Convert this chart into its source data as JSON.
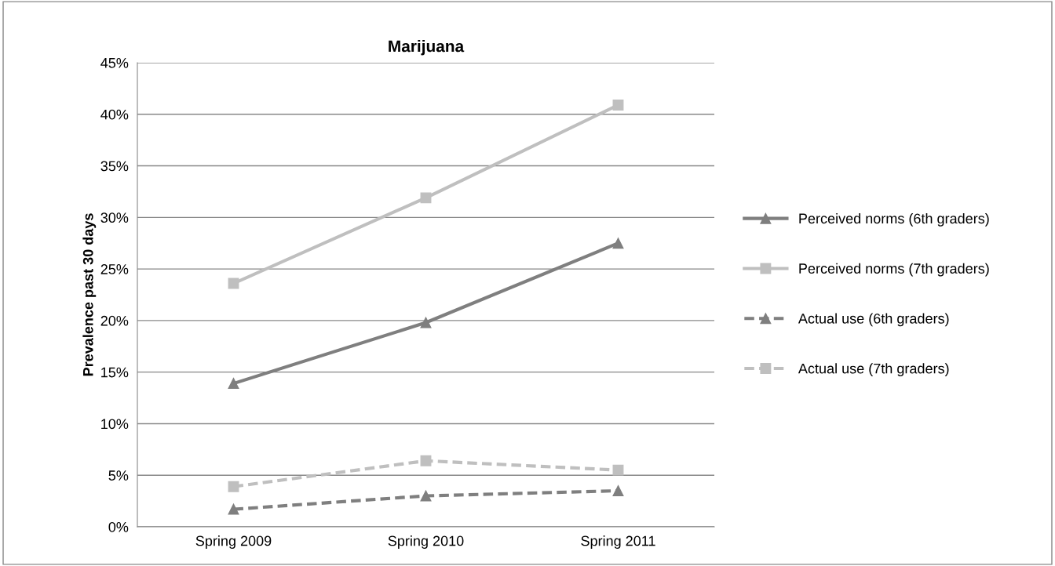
{
  "chart_data": {
    "type": "line",
    "title": "Marijuana",
    "ylabel": "Prevalence past 30 days",
    "categories": [
      "Spring 2009",
      "Spring 2010",
      "Spring 2011"
    ],
    "series": [
      {
        "name": "Perceived norms (6th graders)",
        "color": "#7f7f7f",
        "marker": "triangle",
        "line_style": "solid",
        "values": [
          13.9,
          19.8,
          27.5
        ]
      },
      {
        "name": "Perceived norms (7th graders)",
        "color": "#bfbfbf",
        "marker": "square",
        "line_style": "solid",
        "values": [
          23.6,
          31.9,
          40.9
        ]
      },
      {
        "name": "Actual use (6th graders)",
        "color": "#7f7f7f",
        "marker": "triangle",
        "line_style": "dashed",
        "values": [
          1.7,
          3.0,
          3.5
        ]
      },
      {
        "name": "Actual use (7th graders)",
        "color": "#bfbfbf",
        "marker": "square",
        "line_style": "dashed",
        "values": [
          3.9,
          6.4,
          5.5
        ]
      }
    ],
    "ylim": [
      0,
      45
    ],
    "yticks": [
      {
        "value": 0,
        "label": "0%"
      },
      {
        "value": 5,
        "label": "5%"
      },
      {
        "value": 10,
        "label": "10%"
      },
      {
        "value": 15,
        "label": "15%"
      },
      {
        "value": 20,
        "label": "20%"
      },
      {
        "value": 25,
        "label": "25%"
      },
      {
        "value": 30,
        "label": "30%"
      },
      {
        "value": 35,
        "label": "35%"
      },
      {
        "value": 40,
        "label": "40%"
      },
      {
        "value": 45,
        "label": "45%"
      }
    ],
    "grid": "y",
    "legend": "right"
  }
}
